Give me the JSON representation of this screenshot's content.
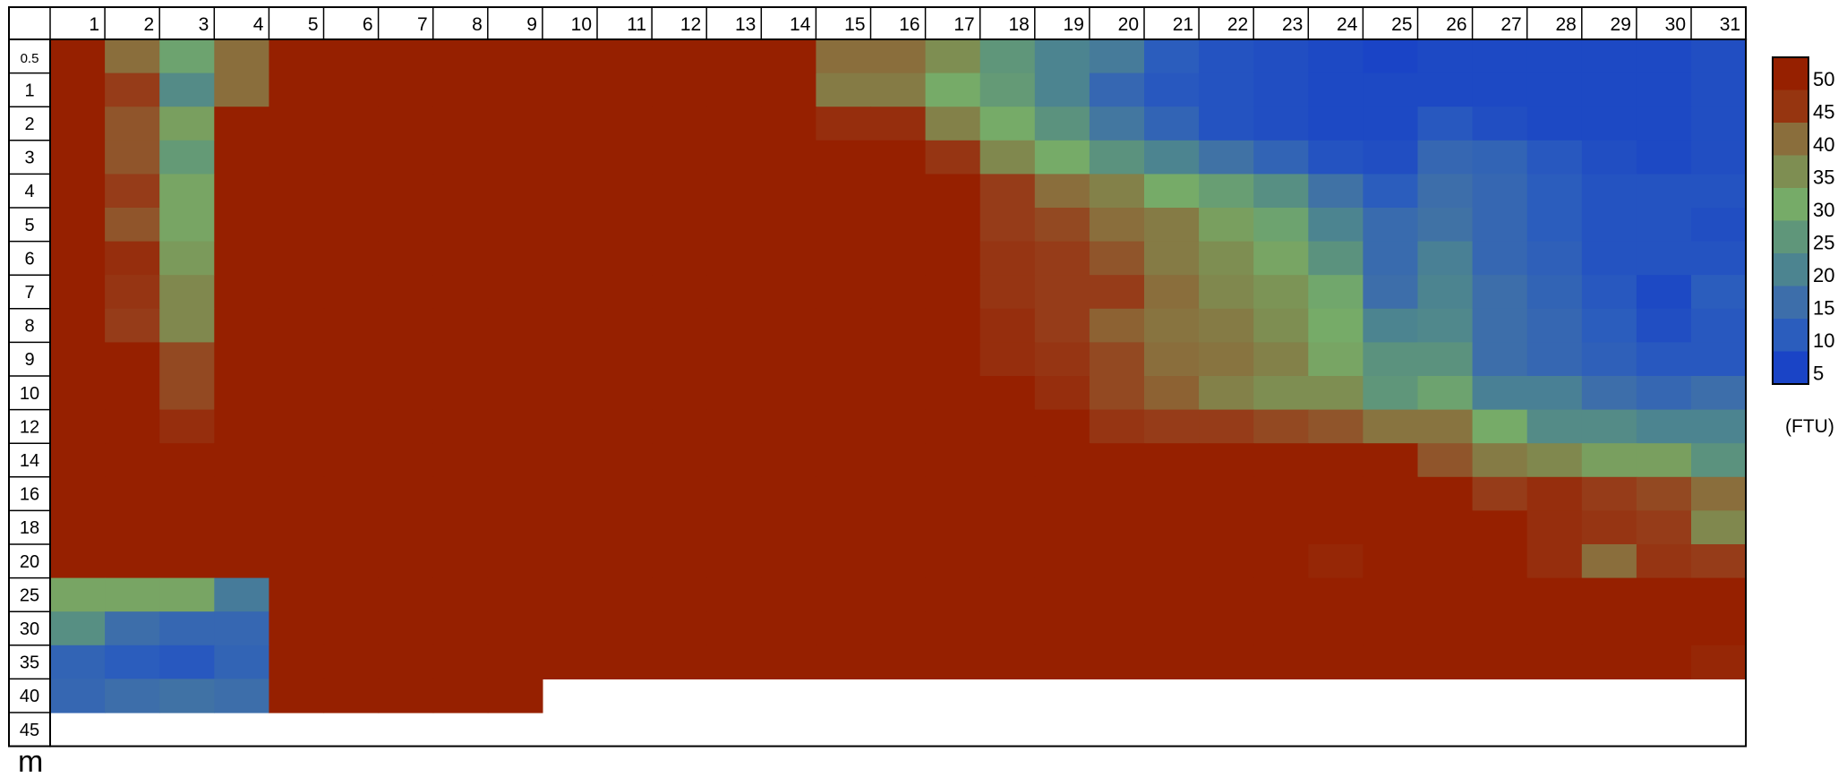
{
  "chart_data": {
    "type": "heatmap",
    "title": "",
    "xlabel": "",
    "ylabel": "m",
    "x_ticks": [
      "1",
      "2",
      "3",
      "4",
      "5",
      "6",
      "7",
      "8",
      "9",
      "10",
      "11",
      "12",
      "13",
      "14",
      "15",
      "16",
      "17",
      "18",
      "19",
      "20",
      "21",
      "22",
      "23",
      "24",
      "25",
      "26",
      "27",
      "28",
      "29",
      "30",
      "31"
    ],
    "y_ticks": [
      "0.5",
      "1",
      "2",
      "3",
      "4",
      "5",
      "6",
      "7",
      "8",
      "9",
      "10",
      "12",
      "14",
      "16",
      "18",
      "20",
      "25",
      "30",
      "35",
      "40",
      "45"
    ],
    "value_note": "cell values in FTU; values >= 45 shown dark red; null = no data",
    "values": [
      [
        48,
        40,
        28,
        40,
        48,
        48,
        48,
        48,
        48,
        48,
        48,
        48,
        48,
        48,
        40,
        40,
        35,
        25,
        20,
        18,
        10,
        8,
        7,
        6,
        5,
        6,
        6,
        6,
        6,
        6,
        7
      ],
      [
        48,
        44,
        22,
        40,
        48,
        48,
        48,
        48,
        48,
        48,
        48,
        48,
        48,
        48,
        38,
        38,
        30,
        26,
        20,
        13,
        9,
        8,
        7,
        6,
        6,
        6,
        6,
        6,
        6,
        6,
        7
      ],
      [
        48,
        42,
        32,
        48,
        48,
        48,
        48,
        48,
        48,
        48,
        48,
        48,
        48,
        48,
        46,
        46,
        37,
        30,
        24,
        17,
        12,
        8,
        7,
        6,
        6,
        9,
        7,
        6,
        6,
        6,
        7
      ],
      [
        48,
        42,
        26,
        48,
        48,
        48,
        48,
        48,
        48,
        48,
        48,
        48,
        48,
        48,
        48,
        48,
        45,
        36,
        30,
        24,
        20,
        16,
        12,
        8,
        7,
        13,
        12,
        9,
        7,
        6,
        7
      ],
      [
        48,
        44,
        31,
        48,
        48,
        48,
        48,
        48,
        48,
        48,
        48,
        48,
        48,
        48,
        48,
        48,
        48,
        44,
        40,
        37,
        30,
        27,
        23,
        16,
        10,
        15,
        13,
        10,
        8,
        8,
        8
      ],
      [
        48,
        42,
        31,
        48,
        48,
        48,
        48,
        48,
        48,
        48,
        48,
        48,
        48,
        48,
        48,
        48,
        48,
        44,
        43,
        40,
        38,
        32,
        28,
        20,
        14,
        16,
        13,
        10,
        8,
        8,
        7
      ],
      [
        48,
        46,
        33,
        48,
        48,
        48,
        48,
        48,
        48,
        48,
        48,
        48,
        48,
        48,
        48,
        48,
        48,
        45,
        44,
        42,
        38,
        35,
        31,
        24,
        14,
        19,
        13,
        11,
        8,
        8,
        8
      ],
      [
        48,
        45,
        36,
        48,
        48,
        48,
        48,
        48,
        48,
        48,
        48,
        48,
        48,
        48,
        48,
        48,
        48,
        45,
        44,
        44,
        40,
        36,
        34,
        29,
        15,
        20,
        15,
        12,
        9,
        6,
        10
      ],
      [
        48,
        44,
        36,
        48,
        48,
        48,
        48,
        48,
        48,
        48,
        48,
        48,
        48,
        48,
        48,
        48,
        48,
        46,
        44,
        41,
        39,
        38,
        35,
        30,
        20,
        21,
        15,
        13,
        10,
        7,
        9
      ],
      [
        48,
        48,
        43,
        48,
        48,
        48,
        48,
        48,
        48,
        48,
        48,
        48,
        48,
        48,
        48,
        48,
        48,
        46,
        45,
        43,
        40,
        39,
        37,
        31,
        24,
        24,
        15,
        13,
        11,
        9,
        9
      ],
      [
        48,
        48,
        43,
        48,
        48,
        48,
        48,
        48,
        48,
        48,
        48,
        48,
        48,
        48,
        48,
        48,
        48,
        48,
        46,
        43,
        41,
        37,
        35,
        35,
        25,
        28,
        19,
        19,
        15,
        13,
        15
      ],
      [
        48,
        48,
        46,
        48,
        48,
        48,
        48,
        48,
        48,
        48,
        48,
        48,
        48,
        48,
        48,
        48,
        48,
        48,
        48,
        45,
        44,
        44,
        43,
        42,
        39,
        39,
        30,
        22,
        22,
        20,
        20
      ],
      [
        48,
        48,
        48,
        48,
        48,
        48,
        48,
        48,
        48,
        48,
        48,
        48,
        48,
        48,
        48,
        48,
        48,
        48,
        48,
        48,
        48,
        48,
        48,
        48,
        48,
        42,
        38,
        36,
        32,
        32,
        24
      ],
      [
        48,
        48,
        48,
        48,
        48,
        48,
        48,
        48,
        48,
        48,
        48,
        48,
        48,
        48,
        48,
        48,
        48,
        48,
        48,
        48,
        48,
        48,
        48,
        48,
        48,
        48,
        44,
        46,
        44,
        43,
        40
      ],
      [
        48,
        48,
        48,
        48,
        48,
        48,
        48,
        48,
        48,
        48,
        48,
        48,
        48,
        48,
        48,
        48,
        48,
        48,
        48,
        48,
        48,
        48,
        48,
        48,
        48,
        48,
        48,
        46,
        45,
        44,
        36
      ],
      [
        48,
        48,
        48,
        48,
        48,
        48,
        48,
        48,
        48,
        48,
        48,
        48,
        48,
        48,
        48,
        48,
        48,
        48,
        48,
        48,
        48,
        48,
        48,
        47,
        48,
        48,
        48,
        46,
        40,
        45,
        44
      ],
      [
        31,
        31,
        31,
        18,
        48,
        48,
        48,
        48,
        48,
        48,
        48,
        48,
        48,
        48,
        48,
        48,
        48,
        48,
        48,
        48,
        48,
        48,
        48,
        48,
        48,
        48,
        48,
        48,
        48,
        48,
        48
      ],
      [
        23,
        15,
        13,
        13,
        48,
        48,
        48,
        48,
        48,
        48,
        48,
        48,
        48,
        48,
        48,
        48,
        48,
        48,
        48,
        48,
        48,
        48,
        48,
        48,
        48,
        48,
        48,
        48,
        48,
        48,
        48
      ],
      [
        12,
        10,
        9,
        12,
        48,
        48,
        48,
        48,
        48,
        48,
        48,
        48,
        48,
        48,
        48,
        48,
        48,
        48,
        48,
        48,
        48,
        48,
        48,
        48,
        48,
        48,
        48,
        48,
        48,
        48,
        47
      ],
      [
        13,
        15,
        16,
        15,
        48,
        48,
        48,
        48,
        48,
        null,
        null,
        null,
        null,
        null,
        null,
        null,
        null,
        null,
        null,
        null,
        null,
        null,
        null,
        null,
        null,
        null,
        null,
        null,
        null,
        null,
        null
      ],
      [
        null,
        null,
        null,
        null,
        null,
        null,
        null,
        null,
        null,
        null,
        null,
        null,
        null,
        null,
        null,
        null,
        null,
        null,
        null,
        null,
        null,
        null,
        null,
        null,
        null,
        null,
        null,
        null,
        null,
        null,
        null
      ]
    ],
    "colorbar": {
      "unit": "(FTU)",
      "labels": [
        "50",
        "45",
        "40",
        "35",
        "30",
        "25",
        "20",
        "15",
        "10",
        "5"
      ],
      "colors": [
        "#962000",
        "#963510",
        "#8a6e3c",
        "#7e8e52",
        "#76ab68",
        "#5f967a",
        "#4c8490",
        "#3d6eaa",
        "#2b5dbd",
        "#1a44c6"
      ]
    },
    "grid": true
  }
}
